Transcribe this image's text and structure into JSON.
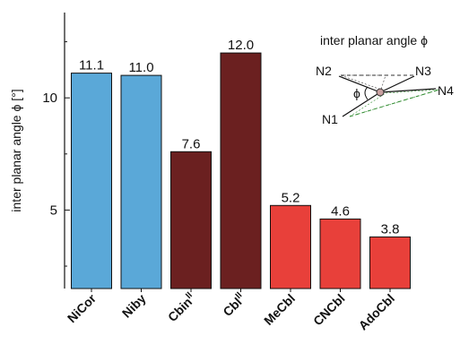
{
  "chart_data": {
    "type": "bar",
    "categories": [
      {
        "base": "NiCor",
        "sup": ""
      },
      {
        "base": "Niby",
        "sup": ""
      },
      {
        "base": "Cbin",
        "sup": "II"
      },
      {
        "base": "Cbl",
        "sup": "II"
      },
      {
        "base": "MeCbl",
        "sup": ""
      },
      {
        "base": "CNCbl",
        "sup": ""
      },
      {
        "base": "AdoCbl",
        "sup": ""
      }
    ],
    "values": [
      11.1,
      11.0,
      7.6,
      12.0,
      5.2,
      4.6,
      3.8
    ],
    "value_labels": [
      "11.1",
      "11.0",
      "7.6",
      "12.0",
      "5.2",
      "4.6",
      "3.8"
    ],
    "bar_colors": [
      "#5aa8d8",
      "#5aa8d8",
      "#6b2020",
      "#6b2020",
      "#e8403a",
      "#e8403a",
      "#e8403a"
    ],
    "ylabel": "inter planar angle ϕ [°]",
    "yticks": [
      5,
      10
    ],
    "ylim": [
      1.5,
      13.8
    ],
    "inset": {
      "title": "inter planar angle ϕ",
      "labels": {
        "n1": "N1",
        "n2": "N2",
        "n3": "N3",
        "n4": "N4",
        "phi": "ϕ"
      }
    }
  }
}
